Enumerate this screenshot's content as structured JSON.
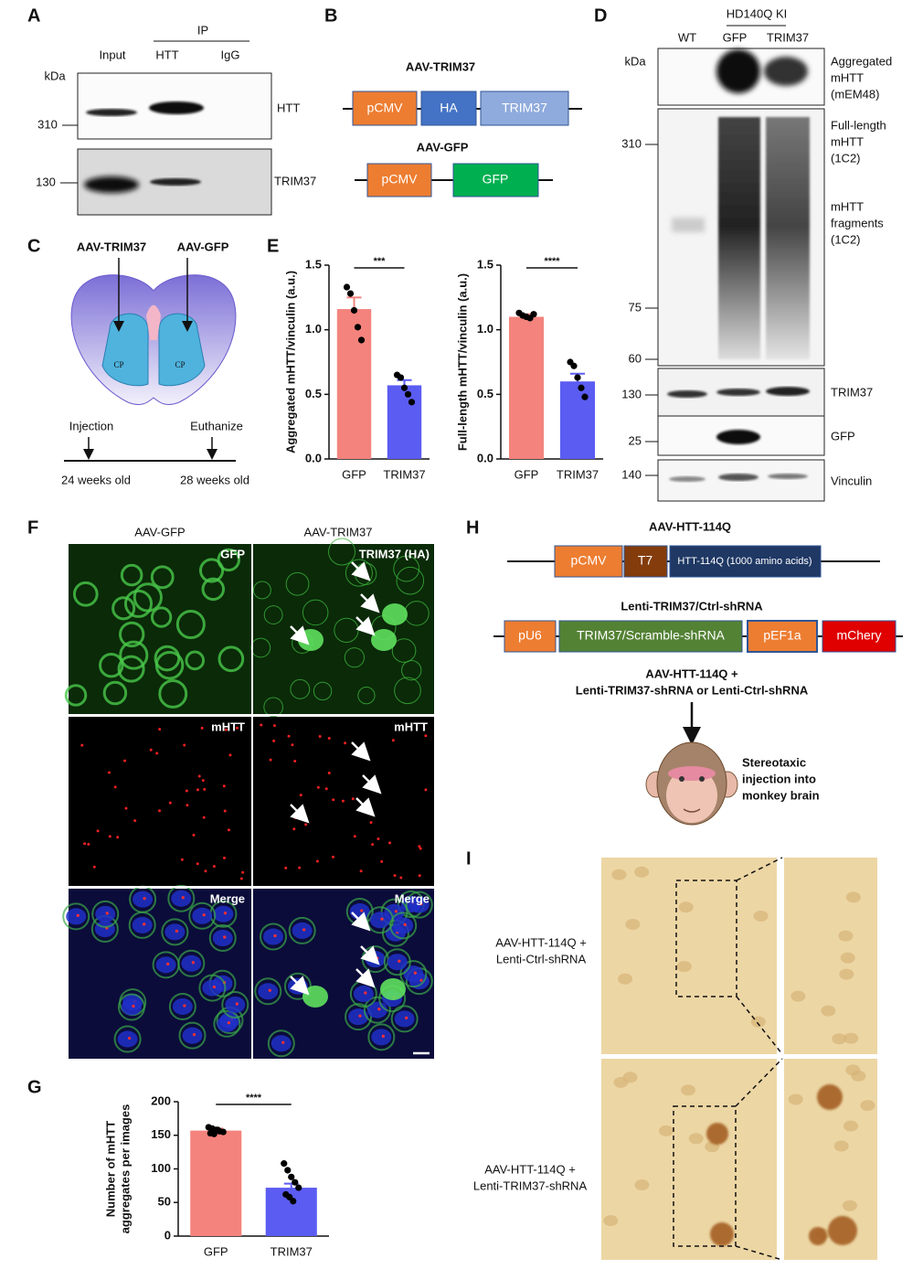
{
  "panels": {
    "A": {
      "letter": "A",
      "ip": "IP",
      "lanes": [
        "Input",
        "HTT",
        "IgG"
      ],
      "kda": "kDa",
      "markers": [
        "310",
        "130"
      ],
      "blots": [
        "HTT",
        "TRIM37"
      ]
    },
    "B": {
      "letter": "B",
      "constructs": [
        {
          "name": "AAV-TRIM37",
          "parts": [
            "pCMV",
            "HA",
            "TRIM37"
          ]
        },
        {
          "name": "AAV-GFP",
          "parts": [
            "pCMV",
            "GFP"
          ]
        }
      ]
    },
    "C": {
      "letter": "C",
      "vectors": [
        "AAV-TRIM37",
        "AAV-GFP"
      ],
      "regions": [
        "CP",
        "CP"
      ],
      "events": [
        "Injection",
        "Euthanize"
      ],
      "ages": [
        "24 weeks old",
        "28 weeks old"
      ]
    },
    "D": {
      "letter": "D",
      "group": "HD140Q KI",
      "lanes": [
        "WT",
        "GFP",
        "TRIM37"
      ],
      "kda": "kDa",
      "markers": [
        "310",
        "75",
        "60",
        "130",
        "25",
        "140"
      ],
      "labels": [
        [
          "Aggregated",
          "mHTT",
          "(mEM48)"
        ],
        [
          "Full-length",
          "mHTT",
          "(1C2)"
        ],
        [
          "mHTT",
          "fragments",
          "(1C2)"
        ],
        [
          "TRIM37"
        ],
        [
          "GFP"
        ],
        [
          "Vinculin"
        ]
      ]
    },
    "E": {
      "letter": "E"
    },
    "F": {
      "letter": "F",
      "columns": [
        "AAV-GFP",
        "AAV-TRIM37"
      ],
      "channels": [
        [
          "GFP",
          "TRIM37 (HA)"
        ],
        [
          "mHTT",
          "mHTT"
        ],
        [
          "Merge",
          "Merge"
        ]
      ]
    },
    "G": {
      "letter": "G"
    },
    "H": {
      "letter": "H",
      "constructs": [
        {
          "name": "AAV-HTT-114Q",
          "parts": [
            "pCMV",
            "T7",
            "HTT-114Q (1000 amino acids)"
          ]
        },
        {
          "name": "Lenti-TRIM37/Ctrl-shRNA",
          "parts": [
            "pU6",
            "TRIM37/Scramble-shRNA",
            "pEF1a",
            "mChery"
          ]
        }
      ],
      "injection": [
        "AAV-HTT-114Q +",
        "Lenti-TRIM37-shRNA or Lenti-Ctrl-shRNA"
      ],
      "note": [
        "Stereotaxic",
        "injection into",
        "monkey brain"
      ]
    },
    "I": {
      "letter": "I",
      "groups": [
        [
          "AAV-HTT-114Q +",
          "Lenti-Ctrl-shRNA"
        ],
        [
          "AAV-HTT-114Q +",
          "Lenti-TRIM37-shRNA"
        ]
      ]
    }
  },
  "chart_data": [
    {
      "type": "bar",
      "ylabel": [
        "Aggregated mHTT/vinculin (a.u.)"
      ],
      "categories": [
        "GFP",
        "TRIM37"
      ],
      "values": [
        1.16,
        0.57
      ],
      "errors": [
        0.09,
        0.04
      ],
      "colors": [
        "#f4837d",
        "#5b5cf2"
      ],
      "points": [
        [
          1.33,
          1.28,
          1.15,
          1.02,
          0.92
        ],
        [
          0.65,
          0.63,
          0.55,
          0.5,
          0.44
        ]
      ],
      "ylim": [
        0,
        1.5
      ],
      "yticks": [
        {
          "value": 0,
          "label": "0.0"
        },
        {
          "value": 0.5,
          "label": "0.5"
        },
        {
          "value": 1,
          "label": "1.0"
        },
        {
          "value": 1.5,
          "label": "1.5"
        }
      ],
      "significance": "***"
    },
    {
      "type": "bar",
      "ylabel": [
        "Full-length mHTT/vinculin (a.u.)"
      ],
      "categories": [
        "GFP",
        "TRIM37"
      ],
      "values": [
        1.1,
        0.6
      ],
      "errors": [
        0.02,
        0.06
      ],
      "colors": [
        "#f4837d",
        "#5b5cf2"
      ],
      "points": [
        [
          1.13,
          1.11,
          1.1,
          1.09,
          1.12
        ],
        [
          0.75,
          0.72,
          0.63,
          0.55,
          0.48
        ]
      ],
      "ylim": [
        0,
        1.5
      ],
      "yticks": [
        {
          "value": 0,
          "label": "0.0"
        },
        {
          "value": 0.5,
          "label": "0.5"
        },
        {
          "value": 1,
          "label": "1.0"
        },
        {
          "value": 1.5,
          "label": "1.5"
        }
      ],
      "significance": "****"
    },
    {
      "type": "bar",
      "ylabel": [
        "Number of mHTT",
        "aggregates per images"
      ],
      "categories": [
        "GFP",
        "TRIM37"
      ],
      "values": [
        157,
        72
      ],
      "errors": [
        3,
        6
      ],
      "colors": [
        "#f4837d",
        "#5b5cf2"
      ],
      "points": [
        [
          162,
          160,
          158,
          156,
          155,
          153,
          152,
          158
        ],
        [
          108,
          98,
          88,
          80,
          72,
          62,
          58,
          52
        ]
      ],
      "ylim": [
        0,
        200
      ],
      "yticks": [
        0,
        50,
        100,
        150,
        200
      ],
      "significance": "****"
    }
  ]
}
